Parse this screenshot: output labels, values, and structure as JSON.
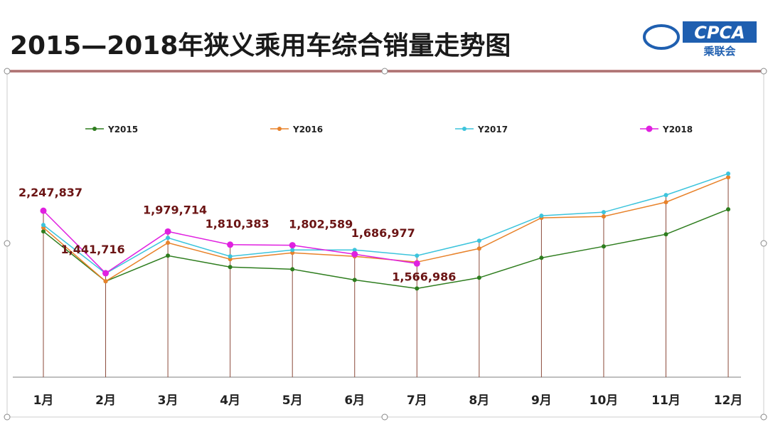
{
  "header": {
    "title": "2015—2018年狭义乘用车综合销量走势图",
    "logo_text": "CPCA",
    "logo_subtext": "乘联会"
  },
  "chart_data": {
    "type": "line",
    "categories": [
      "1月",
      "2月",
      "3月",
      "4月",
      "5月",
      "6月",
      "7月",
      "8月",
      "9月",
      "10月",
      "11月",
      "12月"
    ],
    "series": [
      {
        "name": "Y2015",
        "color": "#2e7d1e",
        "values": [
          1981000,
          1337000,
          1668000,
          1521000,
          1493000,
          1355000,
          1245000,
          1383000,
          1640000,
          1788000,
          1944000,
          2266000
        ]
      },
      {
        "name": "Y2016",
        "color": "#e8822a",
        "values": [
          2030000,
          1337000,
          1834000,
          1622000,
          1705000,
          1659000,
          1585000,
          1760000,
          2156000,
          2174000,
          2358000,
          2680000
        ]
      },
      {
        "name": "Y2017",
        "color": "#3cc4dc",
        "values": [
          2064000,
          1438000,
          1898000,
          1659000,
          1742000,
          1742000,
          1668000,
          1861000,
          2183000,
          2229000,
          2450000,
          2726000
        ]
      },
      {
        "name": "Y2018",
        "color": "#e020e0",
        "values": [
          2247837,
          1441716,
          1979714,
          1810383,
          1802589,
          1686977,
          1566986,
          null,
          null,
          null,
          null,
          null
        ],
        "value_labels": [
          "2,247,837",
          "1,441,716",
          "1,979,714",
          "1,810,383",
          "1,802,589",
          "1,686,977",
          "1,566,986",
          null,
          null,
          null,
          null,
          null
        ]
      }
    ],
    "ylim": [
      100000,
      2800000
    ],
    "legend": "top"
  }
}
